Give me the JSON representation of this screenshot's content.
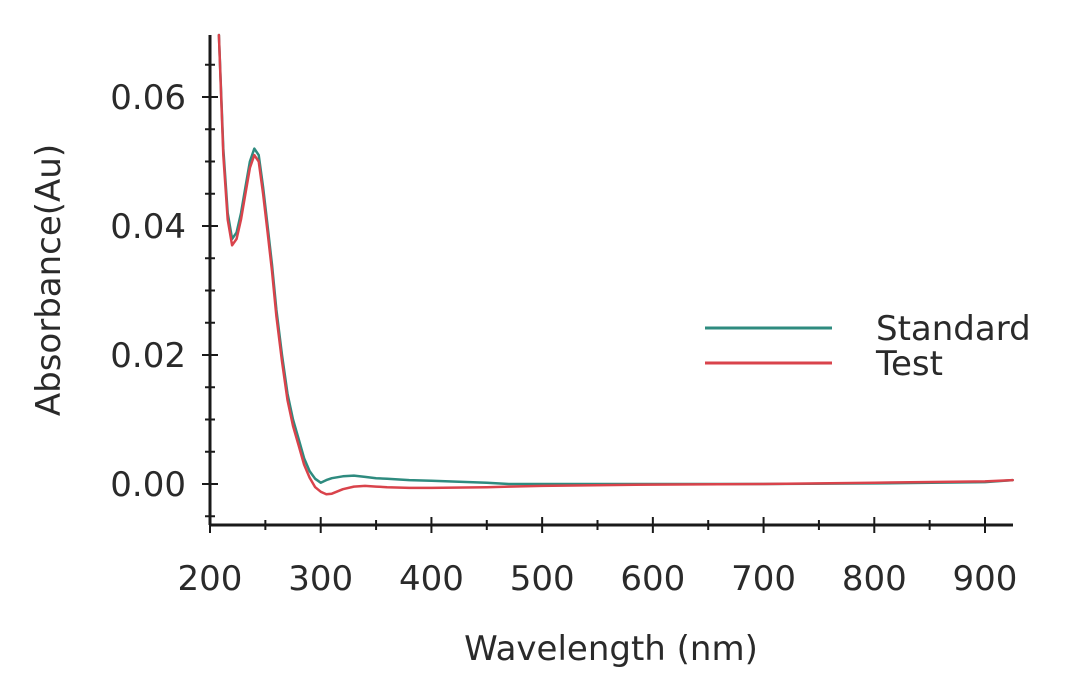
{
  "chart_data": {
    "type": "line",
    "title": "",
    "xlabel": "Wavelength (nm)",
    "ylabel": "Absorbance(Au)",
    "xlim": [
      200,
      925
    ],
    "ylim": [
      -0.007,
      0.07
    ],
    "xticks": [
      200,
      300,
      400,
      500,
      600,
      700,
      800,
      900
    ],
    "xtick_labels": [
      "200",
      "300",
      "400",
      "500",
      "600",
      "700",
      "800",
      "900"
    ],
    "yticks": [
      0.0,
      0.02,
      0.04,
      0.06
    ],
    "ytick_labels": [
      "0.00",
      "0.02",
      "0.04",
      "0.06"
    ],
    "grid": false,
    "legend_position": "center-right",
    "series": [
      {
        "name": "Standard",
        "color": "#2e8b7f",
        "x": [
          208,
          212,
          216,
          220,
          224,
          228,
          232,
          236,
          240,
          244,
          248,
          252,
          256,
          260,
          265,
          270,
          275,
          280,
          285,
          290,
          295,
          300,
          305,
          310,
          320,
          330,
          340,
          350,
          360,
          380,
          400,
          450,
          470,
          500,
          600,
          700,
          800,
          900,
          925
        ],
        "y": [
          0.07,
          0.052,
          0.042,
          0.038,
          0.039,
          0.042,
          0.046,
          0.05,
          0.052,
          0.051,
          0.046,
          0.04,
          0.034,
          0.027,
          0.02,
          0.014,
          0.01,
          0.007,
          0.004,
          0.002,
          0.0008,
          0.0002,
          0.0006,
          0.0009,
          0.0012,
          0.0013,
          0.0011,
          0.0009,
          0.0008,
          0.0006,
          0.0005,
          0.0002,
          0.0,
          0.0,
          0.0,
          0.0,
          0.0001,
          0.0003,
          0.0006
        ]
      },
      {
        "name": "Test",
        "color": "#d9434b",
        "x": [
          208,
          212,
          216,
          220,
          224,
          228,
          232,
          236,
          240,
          244,
          248,
          252,
          256,
          260,
          265,
          270,
          275,
          280,
          285,
          290,
          295,
          300,
          305,
          310,
          320,
          330,
          340,
          350,
          360,
          380,
          400,
          450,
          470,
          500,
          600,
          700,
          800,
          900,
          925
        ],
        "y": [
          0.07,
          0.051,
          0.041,
          0.037,
          0.038,
          0.041,
          0.045,
          0.049,
          0.051,
          0.05,
          0.045,
          0.039,
          0.033,
          0.026,
          0.019,
          0.013,
          0.009,
          0.006,
          0.003,
          0.001,
          -0.0005,
          -0.0012,
          -0.0016,
          -0.0015,
          -0.0008,
          -0.0004,
          -0.0003,
          -0.0004,
          -0.0005,
          -0.0006,
          -0.0006,
          -0.0005,
          -0.0004,
          -0.0003,
          -0.0001,
          0.0,
          0.0002,
          0.0004,
          0.0006
        ]
      }
    ]
  }
}
